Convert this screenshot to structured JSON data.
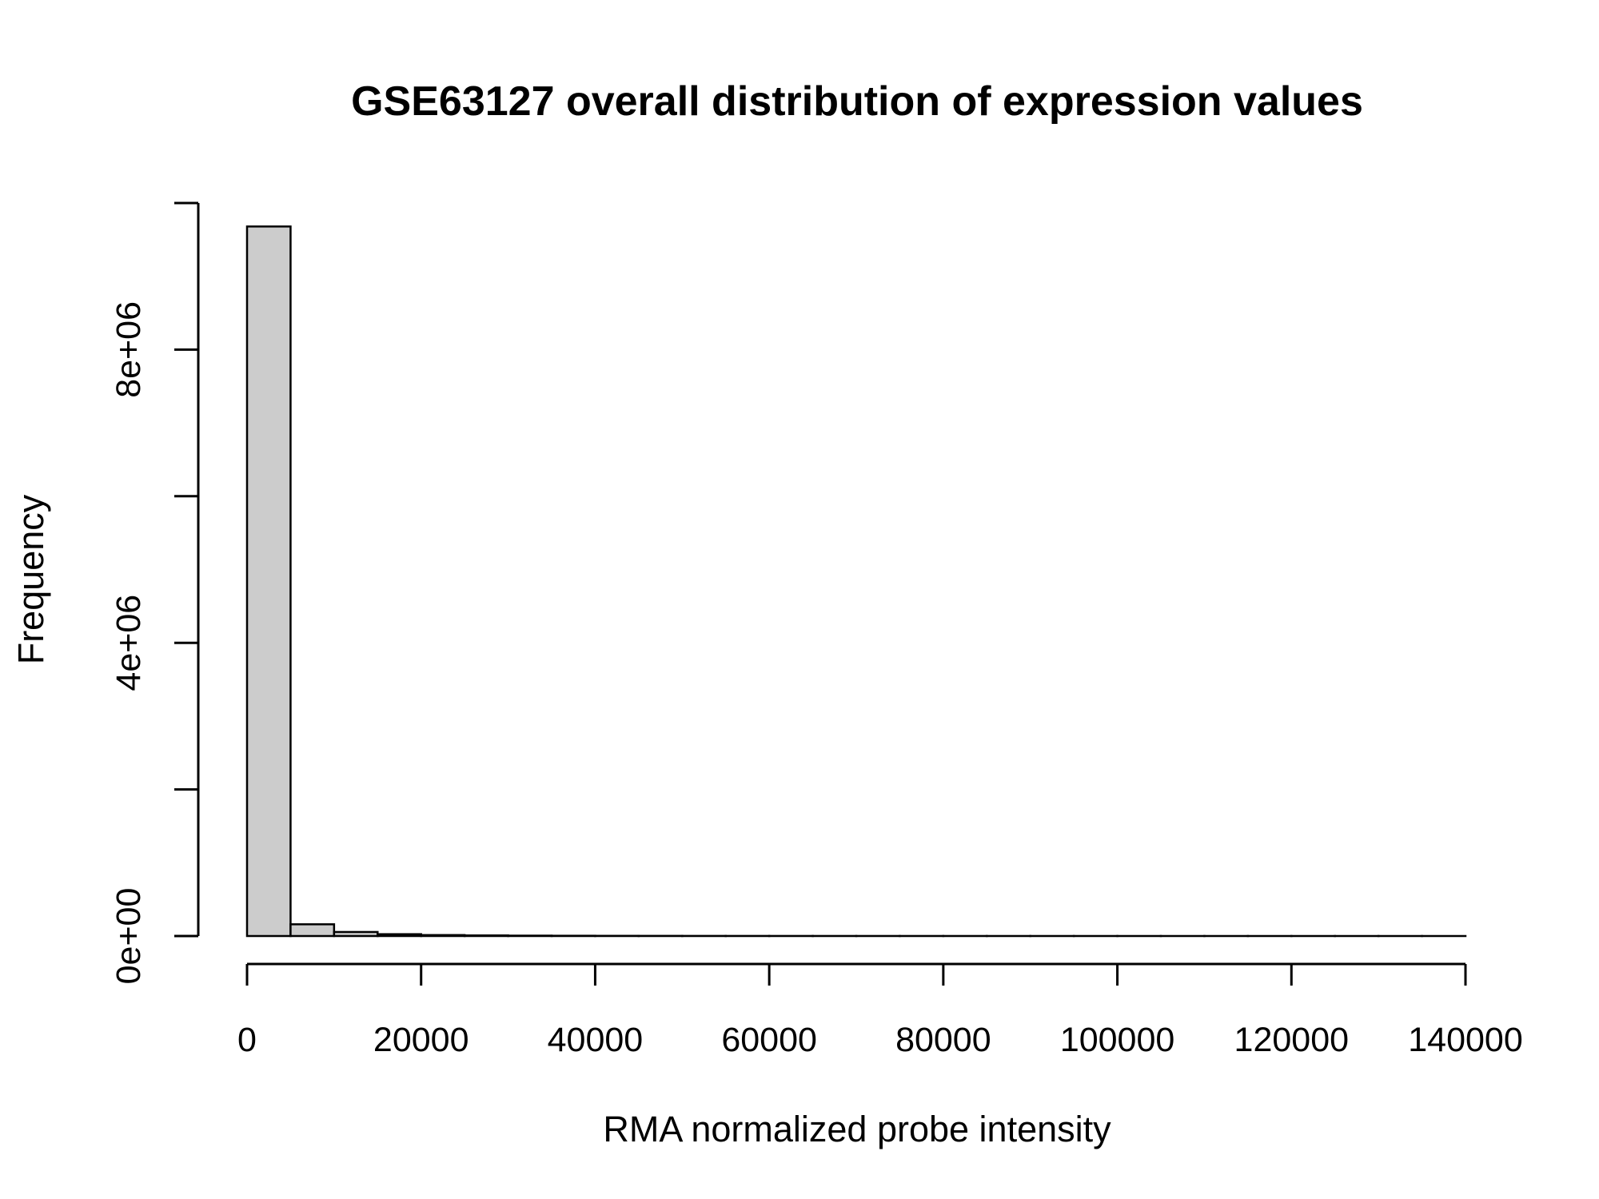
{
  "chart_data": {
    "type": "bar",
    "title": "GSE63127 overall distribution of expression values",
    "xlabel": "RMA normalized probe intensity",
    "ylabel": "Frequency",
    "xlim": [
      0,
      140000
    ],
    "ylim": [
      0,
      10000000
    ],
    "x_ticks": [
      0,
      20000,
      40000,
      60000,
      80000,
      100000,
      120000,
      140000
    ],
    "x_tick_labels": [
      "0",
      "20000",
      "40000",
      "60000",
      "80000",
      "100000",
      "120000",
      "140000"
    ],
    "y_ticks": [
      0,
      2000000,
      4000000,
      6000000,
      8000000,
      10000000
    ],
    "y_tick_labels": [
      "0e+00",
      "",
      "4e+06",
      "",
      "8e+06",
      ""
    ],
    "bin_width": 5000,
    "bins": [
      {
        "start": 0,
        "end": 5000,
        "count": 9680000
      },
      {
        "start": 5000,
        "end": 10000,
        "count": 160000
      },
      {
        "start": 10000,
        "end": 15000,
        "count": 55000
      },
      {
        "start": 15000,
        "end": 20000,
        "count": 25000
      },
      {
        "start": 20000,
        "end": 25000,
        "count": 13000
      },
      {
        "start": 25000,
        "end": 30000,
        "count": 8000
      },
      {
        "start": 30000,
        "end": 35000,
        "count": 5000
      },
      {
        "start": 35000,
        "end": 40000,
        "count": 3500
      },
      {
        "start": 40000,
        "end": 45000,
        "count": 2500
      },
      {
        "start": 45000,
        "end": 50000,
        "count": 2000
      },
      {
        "start": 50000,
        "end": 55000,
        "count": 1500
      },
      {
        "start": 55000,
        "end": 60000,
        "count": 1200
      },
      {
        "start": 60000,
        "end": 65000,
        "count": 1000
      },
      {
        "start": 65000,
        "end": 70000,
        "count": 800
      },
      {
        "start": 70000,
        "end": 75000,
        "count": 700
      },
      {
        "start": 75000,
        "end": 80000,
        "count": 600
      },
      {
        "start": 80000,
        "end": 85000,
        "count": 500
      },
      {
        "start": 85000,
        "end": 90000,
        "count": 400
      },
      {
        "start": 90000,
        "end": 95000,
        "count": 350
      },
      {
        "start": 95000,
        "end": 100000,
        "count": 300
      },
      {
        "start": 100000,
        "end": 105000,
        "count": 250
      },
      {
        "start": 105000,
        "end": 110000,
        "count": 200
      },
      {
        "start": 110000,
        "end": 115000,
        "count": 150
      },
      {
        "start": 115000,
        "end": 120000,
        "count": 120
      },
      {
        "start": 120000,
        "end": 125000,
        "count": 100
      },
      {
        "start": 125000,
        "end": 130000,
        "count": 80
      },
      {
        "start": 130000,
        "end": 135000,
        "count": 60
      },
      {
        "start": 135000,
        "end": 140000,
        "count": 40
      }
    ],
    "grid": false,
    "legend": "none",
    "colors": {
      "bar_fill": "#cccccc",
      "bar_stroke": "#000000"
    }
  }
}
